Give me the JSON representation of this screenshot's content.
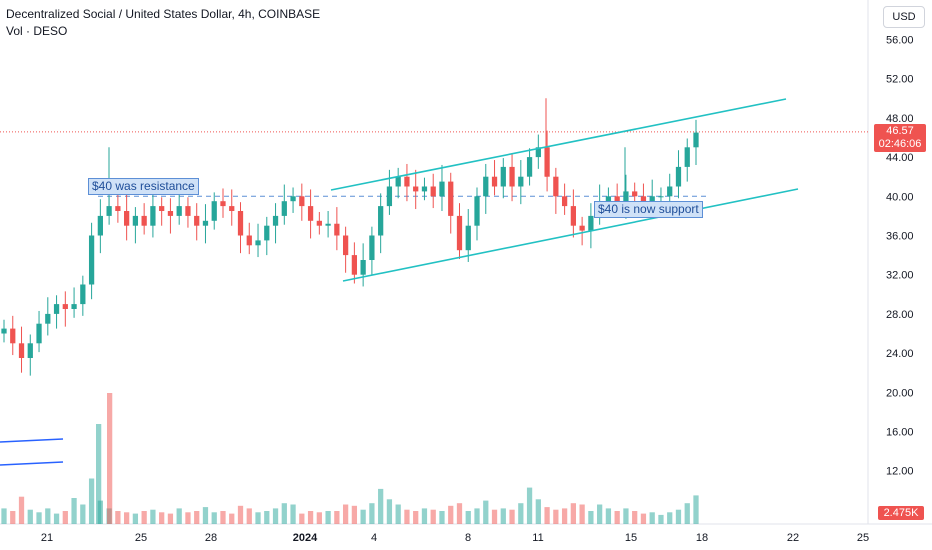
{
  "header": {
    "title": "Decentralized Social / United States Dollar, 4h, COINBASE",
    "subtitle": "Vol · DESO",
    "currency_button": "USD"
  },
  "annotations": {
    "resistance": "$40 was resistance",
    "support": "$40 is now support"
  },
  "price_tag": {
    "price": "46.57",
    "countdown": "02:46:06"
  },
  "volume_tag": "2.475K",
  "colors": {
    "up": "#26a69a",
    "down": "#ef5350",
    "channel": "#22c1c3",
    "level": "#5b8fd6",
    "accent_blue": "#2962ff"
  },
  "chart_data": {
    "type": "candlestick",
    "ylim": [
      4,
      58
    ],
    "y_ticks": [
      8,
      12,
      16,
      20,
      24,
      28,
      32,
      36,
      40,
      44,
      48,
      52,
      56
    ],
    "y_tick_labels": [
      "8.00",
      "12.00",
      "16.00",
      "20.00",
      "24.00",
      "28.00",
      "32.00",
      "36.00",
      "40.00",
      "44.00",
      "48.00",
      "52.00",
      "56.00"
    ],
    "x_ticks": [
      "21",
      "25",
      "28",
      "2024",
      "4",
      "8",
      "11",
      "15",
      "18",
      "22",
      "25"
    ],
    "horizontal_level": 40,
    "last_price": 46.57,
    "closes": [
      26.5,
      25,
      23.5,
      25,
      27,
      28,
      29,
      28.5,
      29,
      31,
      36,
      38,
      39,
      38.5,
      37,
      38,
      37,
      39,
      38.5,
      38,
      39,
      38,
      37,
      37.5,
      39.5,
      39,
      38.5,
      36,
      35,
      35.5,
      37,
      38,
      39.5,
      40,
      39,
      37.5,
      37,
      37.2,
      36,
      34,
      32,
      33.5,
      36,
      39,
      41,
      42,
      41,
      40.5,
      41,
      40,
      41.5,
      38,
      34.5,
      37,
      40,
      42,
      41,
      43,
      41,
      42,
      44,
      45,
      42,
      40,
      39,
      37,
      36.5,
      38,
      39.5,
      40,
      39.5,
      40.5,
      40,
      39.5,
      40,
      40,
      41,
      43,
      45,
      46.5
    ],
    "volume_ylim": [
      0,
      10
    ],
    "volume": [
      1.2,
      1.0,
      2.1,
      1.1,
      0.9,
      1.2,
      0.8,
      1.0,
      2.0,
      1.5,
      3.5,
      1.8,
      1.2,
      1.0,
      0.9,
      0.8,
      1.0,
      1.1,
      0.9,
      0.8,
      1.2,
      0.9,
      1.0,
      1.3,
      0.9,
      1.0,
      0.8,
      1.4,
      1.2,
      0.9,
      1.0,
      1.2,
      1.6,
      1.5,
      0.8,
      1.0,
      0.9,
      1.0,
      1.0,
      1.5,
      1.4,
      1.1,
      1.6,
      2.7,
      1.9,
      1.5,
      1.1,
      1.0,
      1.2,
      1.1,
      1.0,
      1.4,
      1.6,
      1.0,
      1.2,
      1.8,
      1.1,
      1.2,
      1.1,
      1.6,
      2.8,
      1.9,
      1.3,
      1.1,
      1.2,
      1.6,
      1.5,
      1.0,
      1.5,
      1.2,
      1.0,
      1.2,
      1.0,
      0.8,
      0.9,
      0.7,
      0.9,
      1.1,
      1.6,
      2.2
    ]
  }
}
